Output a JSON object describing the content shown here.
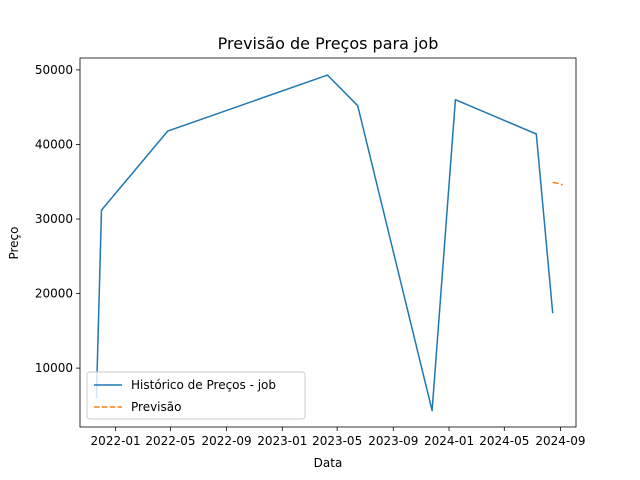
{
  "chart_data": {
    "type": "line",
    "title": "Previsão de Preços para job",
    "xlabel": "Data",
    "ylabel": "Preço",
    "x_tick_labels": [
      "2022-01",
      "2022-05",
      "2022-09",
      "2023-01",
      "2023-05",
      "2023-09",
      "2024-01",
      "2024-05",
      "2024-09"
    ],
    "x_tick_dates": [
      "2022-01-01",
      "2022-05-01",
      "2022-09-01",
      "2023-01-01",
      "2023-05-01",
      "2023-09-01",
      "2024-01-01",
      "2024-05-01",
      "2024-09-01"
    ],
    "y_ticks": [
      10000,
      20000,
      30000,
      40000,
      50000
    ],
    "xlim": [
      "2021-10-15",
      "2024-10-05"
    ],
    "ylim": [
      2100,
      51600
    ],
    "grid": false,
    "legend_position": "lower-left",
    "series": [
      {
        "name": "Histórico de Preços - job",
        "color": "#1f77b4",
        "style": "solid",
        "points": [
          {
            "x": "2021-11-20",
            "y": 6000
          },
          {
            "x": "2021-12-01",
            "y": 31200
          },
          {
            "x": "2022-04-25",
            "y": 41800
          },
          {
            "x": "2023-04-10",
            "y": 49300
          },
          {
            "x": "2023-06-15",
            "y": 45200
          },
          {
            "x": "2023-11-25",
            "y": 4300
          },
          {
            "x": "2024-01-15",
            "y": 46000
          },
          {
            "x": "2024-07-10",
            "y": 41400
          },
          {
            "x": "2024-08-15",
            "y": 17400
          }
        ]
      },
      {
        "name": "Previsão",
        "color": "#ff7f0e",
        "style": "dashed",
        "points": [
          {
            "x": "2024-08-16",
            "y": 34900
          },
          {
            "x": "2024-08-25",
            "y": 34800
          },
          {
            "x": "2024-09-05",
            "y": 34600
          }
        ]
      }
    ]
  }
}
